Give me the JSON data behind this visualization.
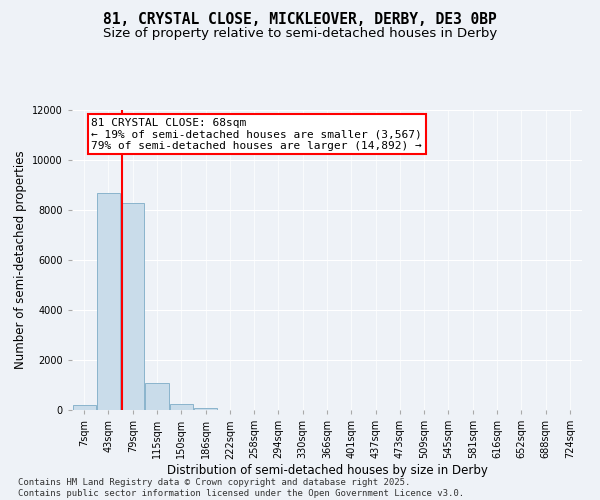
{
  "title_line1": "81, CRYSTAL CLOSE, MICKLEOVER, DERBY, DE3 0BP",
  "title_line2": "Size of property relative to semi-detached houses in Derby",
  "xlabel": "Distribution of semi-detached houses by size in Derby",
  "ylabel": "Number of semi-detached properties",
  "categories": [
    "7sqm",
    "43sqm",
    "79sqm",
    "115sqm",
    "150sqm",
    "186sqm",
    "222sqm",
    "258sqm",
    "294sqm",
    "330sqm",
    "366sqm",
    "401sqm",
    "437sqm",
    "473sqm",
    "509sqm",
    "545sqm",
    "581sqm",
    "616sqm",
    "652sqm",
    "688sqm",
    "724sqm"
  ],
  "values": [
    200,
    8700,
    8300,
    1100,
    250,
    70,
    10,
    0,
    0,
    0,
    0,
    0,
    0,
    0,
    0,
    0,
    0,
    0,
    0,
    0,
    0
  ],
  "bar_color": "#c9dcea",
  "bar_edge_color": "#8ab4cc",
  "property_line_x": 1.55,
  "annotation_text": "81 CRYSTAL CLOSE: 68sqm\n← 19% of semi-detached houses are smaller (3,567)\n79% of semi-detached houses are larger (14,892) →",
  "annotation_box_color": "white",
  "annotation_box_edge_color": "red",
  "vline_color": "red",
  "ylim": [
    0,
    12000
  ],
  "yticks": [
    0,
    2000,
    4000,
    6000,
    8000,
    10000,
    12000
  ],
  "background_color": "#eef2f7",
  "grid_color": "white",
  "footer_line1": "Contains HM Land Registry data © Crown copyright and database right 2025.",
  "footer_line2": "Contains public sector information licensed under the Open Government Licence v3.0.",
  "title_fontsize": 10.5,
  "subtitle_fontsize": 9.5,
  "axis_label_fontsize": 8.5,
  "tick_fontsize": 7,
  "annotation_fontsize": 8,
  "footer_fontsize": 6.5
}
